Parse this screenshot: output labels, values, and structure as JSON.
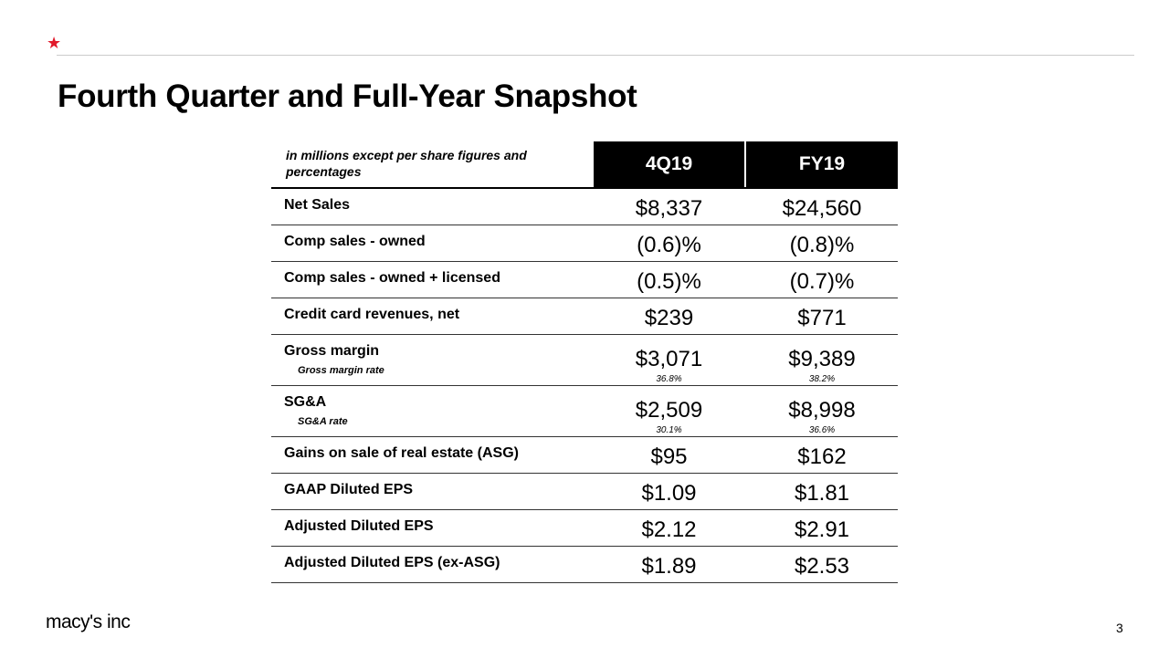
{
  "title": "Fourth Quarter and Full-Year Snapshot",
  "brand": {
    "logo": "macy's inc",
    "accent": "#e11a2b"
  },
  "table": {
    "header_note": "in millions except per share figures and percentages",
    "columns": [
      "4Q19",
      "FY19"
    ],
    "rows": [
      {
        "label": "Net Sales",
        "values": [
          "$8,337",
          "$24,560"
        ]
      },
      {
        "label": "Comp sales - owned",
        "values": [
          "(0.6)%",
          "(0.8)%"
        ]
      },
      {
        "label": "Comp sales - owned + licensed",
        "values": [
          "(0.5)%",
          "(0.7)%"
        ]
      },
      {
        "label": "Credit card revenues, net",
        "values": [
          "$239",
          "$771"
        ]
      },
      {
        "label": "Gross margin",
        "sublabel": "Gross margin rate",
        "values": [
          "$3,071",
          "$9,389"
        ],
        "subvalues": [
          "36.8%",
          "38.2%"
        ]
      },
      {
        "label": "SG&A",
        "sublabel": "SG&A rate",
        "values": [
          "$2,509",
          "$8,998"
        ],
        "subvalues": [
          "30.1%",
          "36.6%"
        ]
      },
      {
        "label": "Gains on sale of real estate (ASG)",
        "values": [
          "$95",
          "$162"
        ]
      },
      {
        "label": "GAAP Diluted EPS",
        "values": [
          "$1.09",
          "$1.81"
        ]
      },
      {
        "label": "Adjusted Diluted EPS",
        "values": [
          "$2.12",
          "$2.91"
        ]
      },
      {
        "label": "Adjusted Diluted EPS (ex-ASG)",
        "values": [
          "$1.89",
          "$2.53"
        ]
      }
    ]
  },
  "page_number": "3"
}
